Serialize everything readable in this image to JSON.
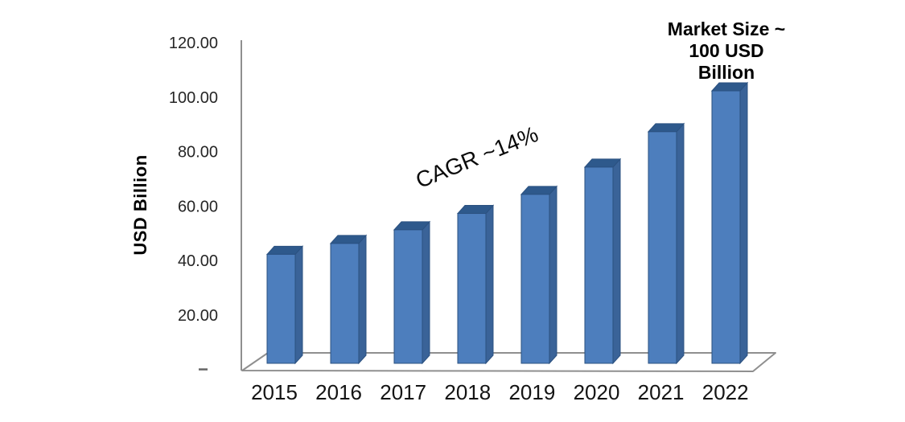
{
  "chart_data": {
    "type": "bar",
    "style": "3d-column",
    "title": "",
    "categories": [
      "2015",
      "2016",
      "2017",
      "2018",
      "2019",
      "2020",
      "2021",
      "2022"
    ],
    "values": [
      40,
      44,
      49,
      55,
      62,
      72,
      85,
      100
    ],
    "series_name": "Market Size",
    "unit": "USD Billion",
    "xlabel": "",
    "ylabel": "USD Billion",
    "ylim": [
      0,
      120
    ],
    "yticks": [
      {
        "value": 0,
        "label": "-"
      },
      {
        "value": 20,
        "label": "20.00"
      },
      {
        "value": 40,
        "label": "40.00"
      },
      {
        "value": 60,
        "label": "60.00"
      },
      {
        "value": 80,
        "label": "80.00"
      },
      {
        "value": 100,
        "label": "100.00"
      },
      {
        "value": 120,
        "label": "120.00"
      }
    ],
    "grid": false,
    "legend": "none",
    "annotations": {
      "cagr": {
        "text": "CAGR ~14%"
      },
      "market_size": {
        "text": "Market Size ~ 100 USD Billion",
        "lines": [
          "Market Size ~",
          "100 USD",
          "Billion"
        ]
      }
    },
    "colors": {
      "bar_front": "#4d7ebd",
      "bar_side": "#3a6398",
      "bar_top": "#2e598c",
      "bar_outline": "#2b5180",
      "axis_line": "#8f8f8f",
      "zero_dash": "#666666",
      "tick_text": "#262626",
      "annotation_text": "#000000",
      "background": "#ffffff"
    }
  }
}
